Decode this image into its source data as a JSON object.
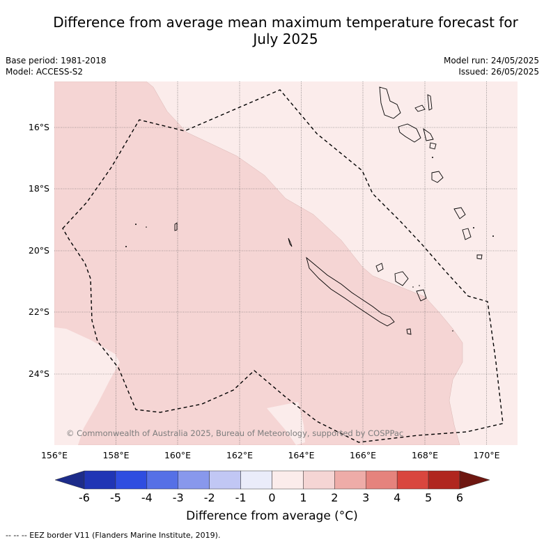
{
  "title": {
    "line1": "Difference from average mean maximum temperature forecast for",
    "line2": "July 2025"
  },
  "meta": {
    "base_period": "Base period: 1981-2018",
    "model": "Model: ACCESS-S2",
    "model_run": "Model run: 24/05/2025",
    "issued": "Issued: 26/05/2025"
  },
  "map": {
    "lat_labels": [
      "16°S",
      "18°S",
      "20°S",
      "22°S",
      "24°S"
    ],
    "lon_labels": [
      "156°E",
      "158°E",
      "160°E",
      "162°E",
      "164°E",
      "166°E",
      "168°E",
      "170°E"
    ],
    "copyright": "© Commonwealth of Australia 2025, Bureau of Meteorology, supported by COSPPac",
    "colors": {
      "anomaly_0_to_1": "#fbeceb",
      "anomaly_1_to_2": "#f5d5d4",
      "land_outline": "#000000",
      "eez_border": "#000000"
    }
  },
  "colorbar": {
    "title": "Difference from average (°C)",
    "ticks": [
      "-6",
      "-5",
      "-4",
      "-3",
      "-2",
      "-1",
      "0",
      "1",
      "2",
      "3",
      "4",
      "5",
      "6"
    ],
    "colors": [
      "#1d2c8a",
      "#2035b5",
      "#2f4de0",
      "#5670e6",
      "#8898ec",
      "#c1c7f4",
      "#eaecfa",
      "#fbeceb",
      "#f5d5d4",
      "#eeaca8",
      "#e5837d",
      "#d9463e",
      "#b0261f",
      "#6e1711"
    ]
  },
  "footnote": "-- -- -- EEZ border V11 (Flanders Marine Institute, 2019)."
}
